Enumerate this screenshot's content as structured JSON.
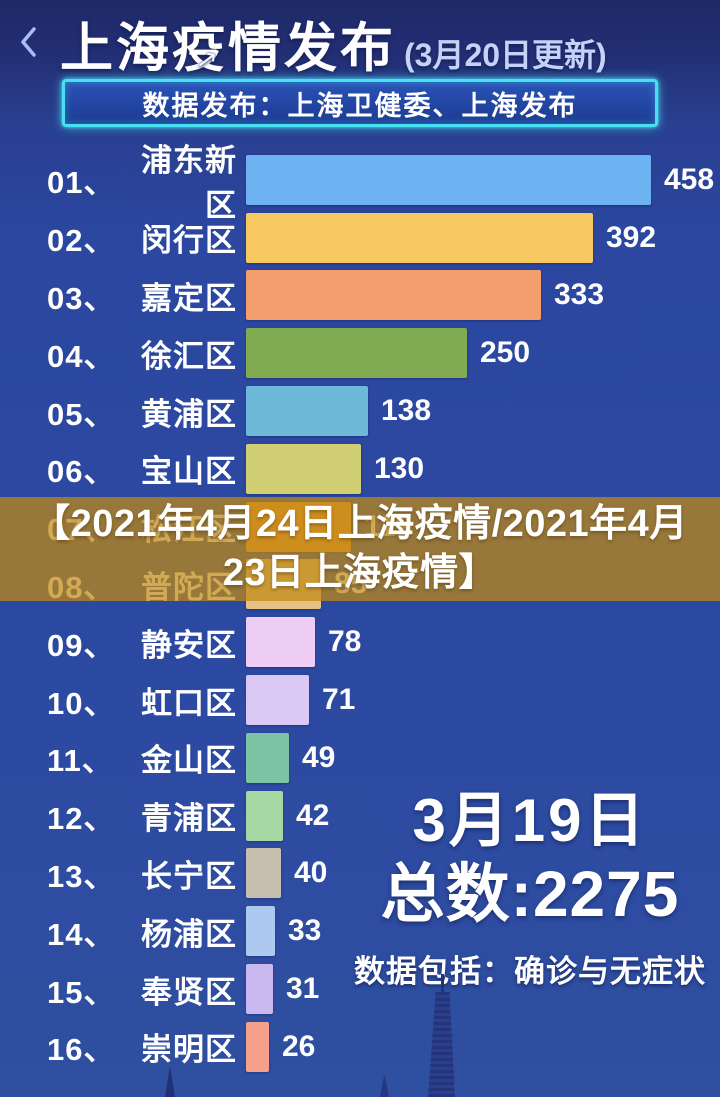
{
  "header": {
    "back_icon": "chevron-left",
    "title": "上海疫情发布",
    "title_suffix": "(3月20日更新)",
    "banner": "数据发布：上海卫健委、上海发布",
    "banner_border_color": "#46e0f2"
  },
  "overlay": {
    "line1": "【2021年4月24日上海疫情/2021年4月",
    "line2": "23日上海疫情】",
    "band_color": "rgba(193,137,18,0.72)"
  },
  "summary": {
    "date": "3月19日",
    "total": "总数:2275",
    "note": "数据包括：确诊与无症状"
  },
  "chart_data": {
    "type": "bar",
    "orientation": "horizontal",
    "title": "上海疫情发布 (3月20日更新)",
    "subtitle": "数据发布：上海卫健委、上海发布",
    "date_label": "3月19日",
    "total": 2275,
    "note": "数据包括：确诊与无症状",
    "xlim": [
      0,
      470
    ],
    "value_labels_shown": true,
    "ranks": [
      "01、",
      "02、",
      "03、",
      "04、",
      "05、",
      "06、",
      "07、",
      "08、",
      "09、",
      "10、",
      "11、",
      "12、",
      "13、",
      "14、",
      "15、",
      "16、"
    ],
    "categories": [
      "浦东新区",
      "闵行区",
      "嘉定区",
      "徐汇区",
      "黄浦区",
      "宝山区",
      "松江区",
      "普陀区",
      "静安区",
      "虹口区",
      "金山区",
      "青浦区",
      "长宁区",
      "杨浦区",
      "奉贤区",
      "崇明区"
    ],
    "values": [
      458,
      392,
      333,
      250,
      138,
      130,
      119,
      85,
      78,
      71,
      49,
      42,
      40,
      33,
      31,
      26
    ],
    "bar_colors": [
      "#6db3f2",
      "#f6c860",
      "#f59e6d",
      "#80ab50",
      "#6fb9d8",
      "#d0cf73",
      "#f09b3e",
      "#e5c188",
      "#eecdf4",
      "#d9c9f4",
      "#7cc4a4",
      "#a6d8a3",
      "#c8bfb1",
      "#aec9f0",
      "#c9b9f0",
      "#f7a08b"
    ]
  },
  "colors": {
    "background_top": "#1e2968",
    "background_main": "#2c49a2",
    "accent_cyan": "#46e0f2",
    "text": "#ffffff"
  }
}
